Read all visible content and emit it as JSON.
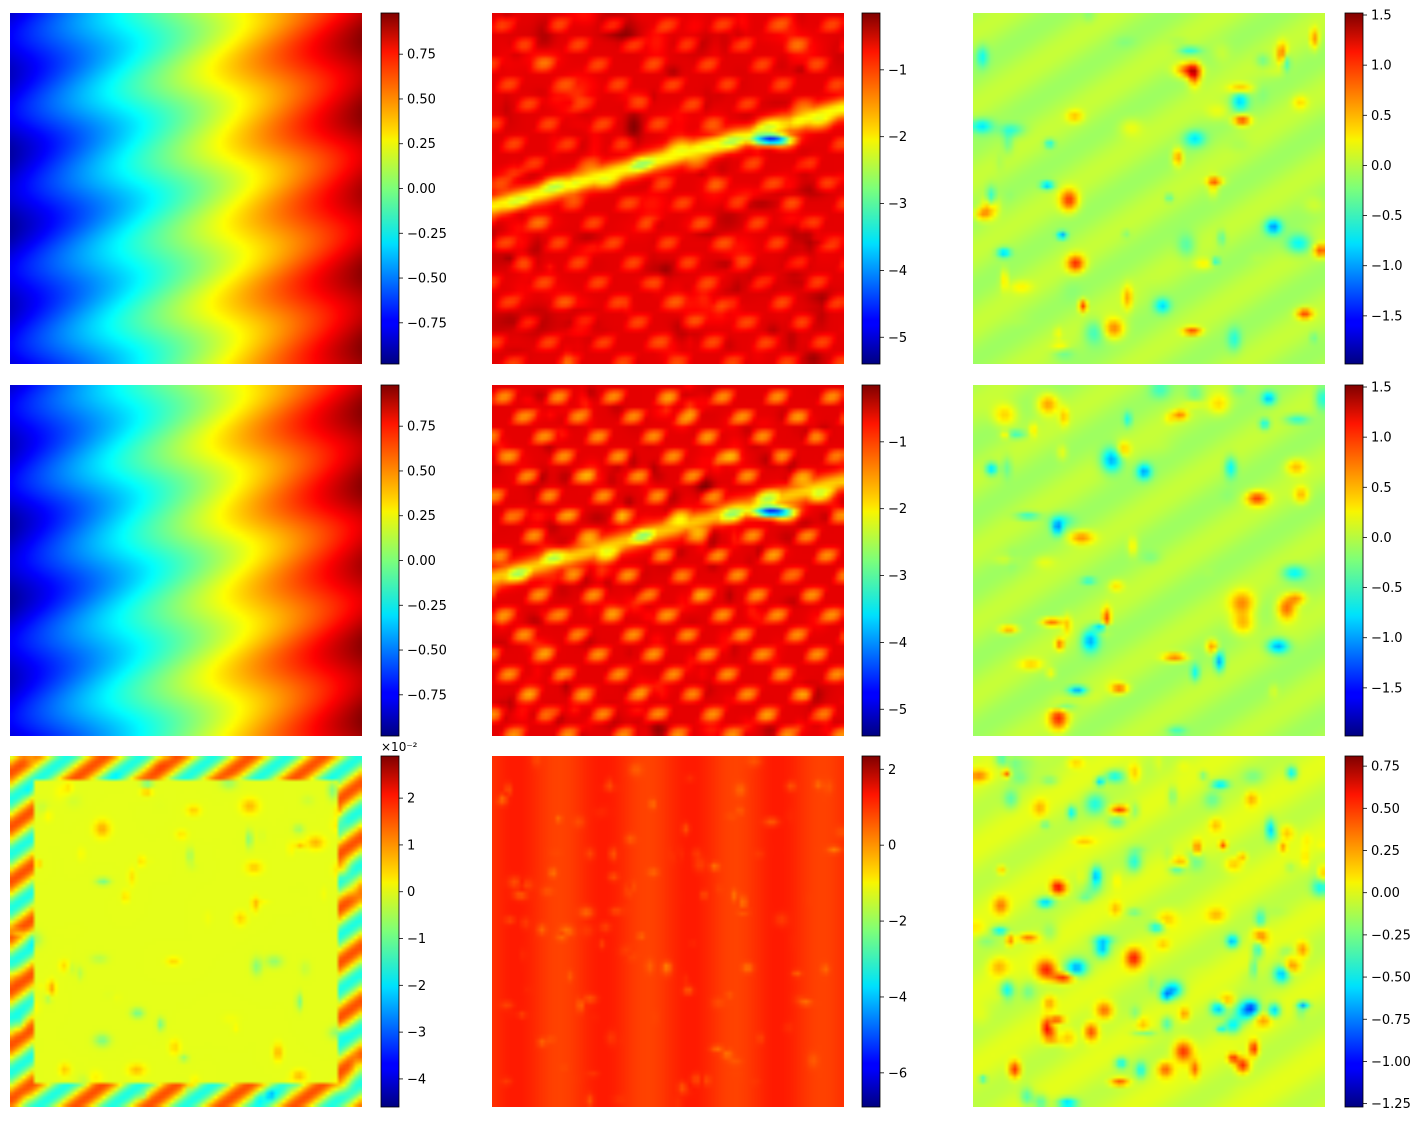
{
  "figure": {
    "colormap": "jet",
    "grid": false,
    "axes_visible": false
  },
  "chart_data": [
    {
      "type": "heatmap",
      "row": 1,
      "col": 1,
      "title": "",
      "xlabel": "",
      "ylabel": "",
      "pattern": "horizontal-gradient",
      "seed": 11,
      "colorbar": {
        "range": [
          -0.98,
          0.98
        ],
        "ticks": [
          0.75,
          0.5,
          0.25,
          0.0,
          -0.25,
          -0.5,
          -0.75
        ],
        "tick_labels": [
          "0.75",
          "0.50",
          "0.25",
          "0.00",
          "−0.25",
          "−0.50",
          "−0.75"
        ],
        "offset_label": ""
      }
    },
    {
      "type": "heatmap",
      "row": 1,
      "col": 2,
      "title": "",
      "xlabel": "",
      "ylabel": "",
      "pattern": "red-field-streaks",
      "seed": 23,
      "colorbar": {
        "range": [
          -5.4,
          -0.15
        ],
        "ticks": [
          -1,
          -2,
          -3,
          -4,
          -5
        ],
        "tick_labels": [
          "−1",
          "−2",
          "−3",
          "−4",
          "−5"
        ],
        "offset_label": ""
      }
    },
    {
      "type": "heatmap",
      "row": 1,
      "col": 3,
      "title": "",
      "xlabel": "",
      "ylabel": "",
      "pattern": "sparse-blobs",
      "seed": 37,
      "colorbar": {
        "range": [
          -1.98,
          1.52
        ],
        "ticks": [
          1.5,
          1.0,
          0.5,
          0.0,
          -0.5,
          -1.0,
          -1.5
        ],
        "tick_labels": [
          "1.5",
          "1.0",
          "0.5",
          "0.0",
          "−0.5",
          "−1.0",
          "−1.5"
        ],
        "offset_label": ""
      }
    },
    {
      "type": "heatmap",
      "row": 2,
      "col": 1,
      "title": "",
      "xlabel": "",
      "ylabel": "",
      "pattern": "horizontal-gradient",
      "seed": 11,
      "colorbar": {
        "range": [
          -0.98,
          0.98
        ],
        "ticks": [
          0.75,
          0.5,
          0.25,
          0.0,
          -0.25,
          -0.5,
          -0.75
        ],
        "tick_labels": [
          "0.75",
          "0.50",
          "0.25",
          "0.00",
          "−0.25",
          "−0.50",
          "−0.75"
        ],
        "offset_label": ""
      }
    },
    {
      "type": "heatmap",
      "row": 2,
      "col": 2,
      "title": "",
      "xlabel": "",
      "ylabel": "",
      "pattern": "red-field-cells",
      "seed": 41,
      "colorbar": {
        "range": [
          -5.4,
          -0.15
        ],
        "ticks": [
          -1,
          -2,
          -3,
          -4,
          -5
        ],
        "tick_labels": [
          "−1",
          "−2",
          "−3",
          "−4",
          "−5"
        ],
        "offset_label": ""
      }
    },
    {
      "type": "heatmap",
      "row": 2,
      "col": 3,
      "title": "",
      "xlabel": "",
      "ylabel": "",
      "pattern": "sparse-blobs",
      "seed": 53,
      "colorbar": {
        "range": [
          -1.98,
          1.52
        ],
        "ticks": [
          1.5,
          1.0,
          0.5,
          0.0,
          -0.5,
          -1.0,
          -1.5
        ],
        "tick_labels": [
          "1.5",
          "1.0",
          "0.5",
          "0.0",
          "−0.5",
          "−1.0",
          "−1.5"
        ],
        "offset_label": ""
      }
    },
    {
      "type": "heatmap",
      "row": 3,
      "col": 1,
      "title": "",
      "xlabel": "",
      "ylabel": "",
      "pattern": "error-field",
      "seed": 67,
      "colorbar": {
        "range": [
          -4.6,
          2.9
        ],
        "ticks": [
          2,
          1,
          0,
          -1,
          -2,
          -3,
          -4
        ],
        "tick_labels": [
          "2",
          "1",
          "0",
          "−1",
          "−2",
          "−3",
          "−4"
        ],
        "offset_label": "×10⁻²"
      }
    },
    {
      "type": "heatmap",
      "row": 3,
      "col": 2,
      "title": "",
      "xlabel": "",
      "ylabel": "",
      "pattern": "orange-field-dots",
      "seed": 79,
      "colorbar": {
        "range": [
          -6.9,
          2.35
        ],
        "ticks": [
          2,
          0,
          -2,
          -4,
          -6
        ],
        "tick_labels": [
          "2",
          "0",
          "−2",
          "−4",
          "−6"
        ],
        "offset_label": ""
      }
    },
    {
      "type": "heatmap",
      "row": 3,
      "col": 3,
      "title": "",
      "xlabel": "",
      "ylabel": "",
      "pattern": "dense-blobs",
      "seed": 83,
      "colorbar": {
        "range": [
          -1.27,
          0.81
        ],
        "ticks": [
          0.75,
          0.5,
          0.25,
          0.0,
          -0.25,
          -0.5,
          -0.75,
          -1.0,
          -1.25
        ],
        "tick_labels": [
          "0.75",
          "0.50",
          "0.25",
          "0.00",
          "−0.25",
          "−0.50",
          "−0.75",
          "−1.00",
          "−1.25"
        ],
        "offset_label": ""
      }
    }
  ]
}
